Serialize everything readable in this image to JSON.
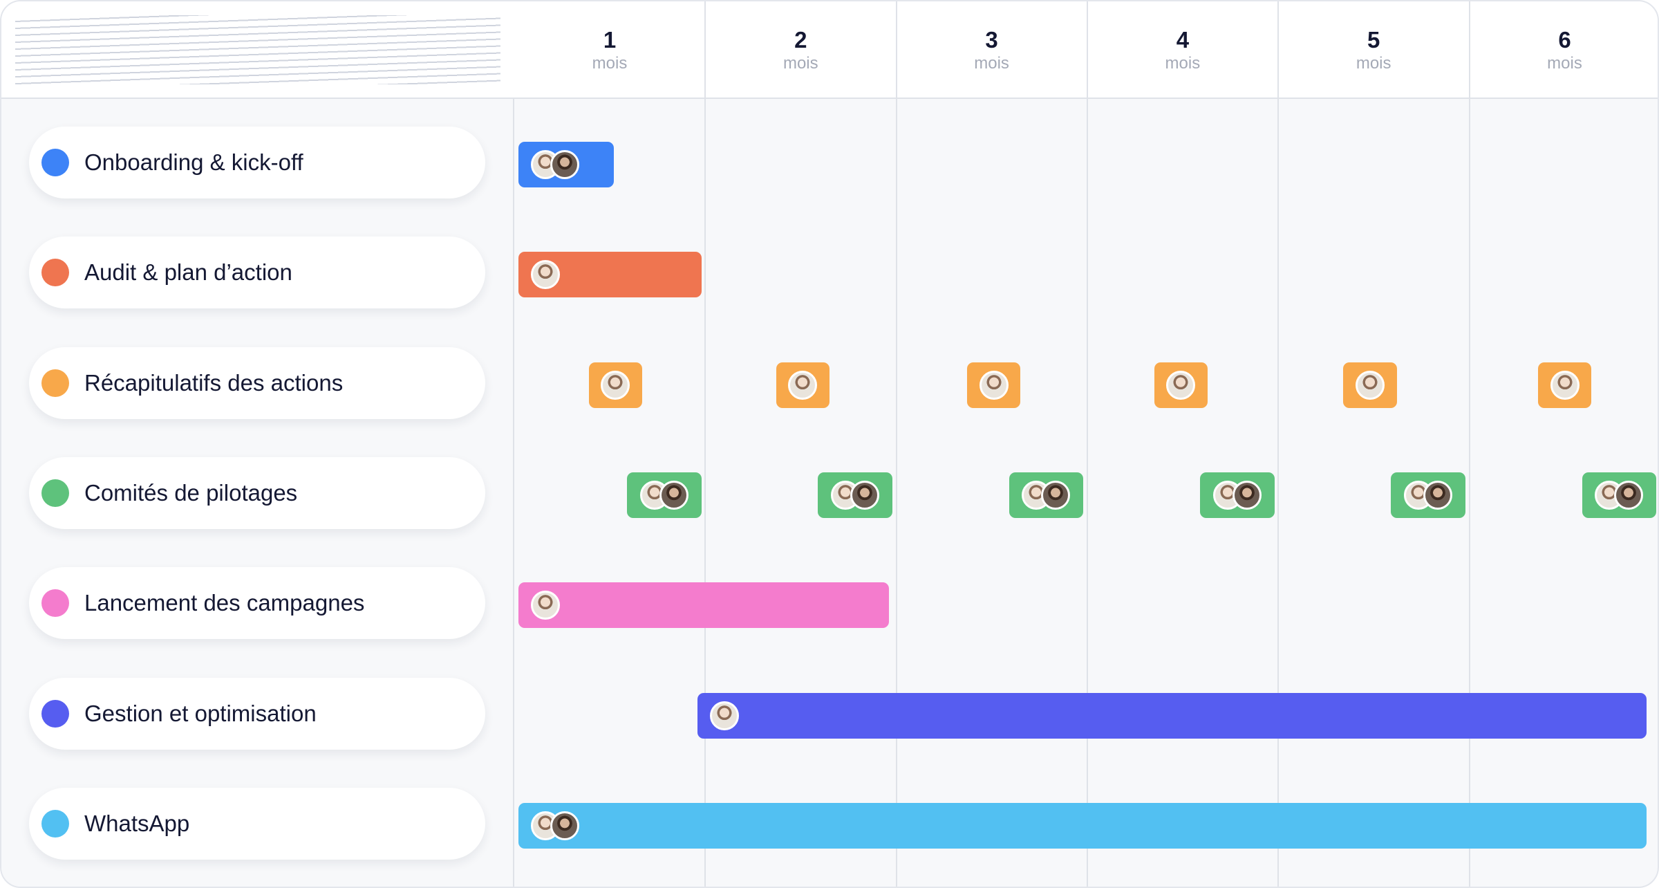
{
  "colors": {
    "blue": "#3d83f7",
    "orange_red": "#ef7550",
    "orange": "#f8a84a",
    "green": "#5ec27c",
    "pink": "#f47ccd",
    "indigo": "#565df0",
    "sky": "#52c0f2"
  },
  "months": [
    {
      "num": "1",
      "unit": "mois"
    },
    {
      "num": "2",
      "unit": "mois"
    },
    {
      "num": "3",
      "unit": "mois"
    },
    {
      "num": "4",
      "unit": "mois"
    },
    {
      "num": "5",
      "unit": "mois"
    },
    {
      "num": "6",
      "unit": "mois"
    }
  ],
  "chart_data": {
    "type": "gantt",
    "x_unit": "mois",
    "x_range": [
      0,
      6
    ],
    "tasks": [
      {
        "name": "Onboarding & kick-off",
        "color": "#3d83f7",
        "bars": [
          {
            "start": 0.02,
            "end": 0.52,
            "avatars": 2
          }
        ]
      },
      {
        "name": "Audit & plan d’action",
        "color": "#ef7550",
        "bars": [
          {
            "start": 0.02,
            "end": 0.98,
            "avatars": 1
          }
        ]
      },
      {
        "name": "Récapitulatifs des actions",
        "color": "#f8a84a",
        "bars": [
          {
            "start": 0.39,
            "end": 0.67,
            "avatars": 1
          },
          {
            "start": 1.37,
            "end": 1.65,
            "avatars": 1
          },
          {
            "start": 2.37,
            "end": 2.65,
            "avatars": 1
          },
          {
            "start": 3.35,
            "end": 3.63,
            "avatars": 1
          },
          {
            "start": 4.34,
            "end": 4.62,
            "avatars": 1
          },
          {
            "start": 5.36,
            "end": 5.64,
            "avatars": 1
          }
        ]
      },
      {
        "name": "Comités de pilotages",
        "color": "#5ec27c",
        "bars": [
          {
            "start": 0.59,
            "end": 0.98,
            "avatars": 2
          },
          {
            "start": 1.59,
            "end": 1.98,
            "avatars": 2
          },
          {
            "start": 2.59,
            "end": 2.98,
            "avatars": 2
          },
          {
            "start": 3.59,
            "end": 3.98,
            "avatars": 2
          },
          {
            "start": 4.59,
            "end": 4.98,
            "avatars": 2
          },
          {
            "start": 5.59,
            "end": 5.98,
            "avatars": 2
          }
        ]
      },
      {
        "name": "Lancement des campagnes",
        "color": "#f47ccd",
        "bars": [
          {
            "start": 0.02,
            "end": 1.96,
            "avatars": 1
          }
        ]
      },
      {
        "name": "Gestion et optimisation",
        "color": "#565df0",
        "bars": [
          {
            "start": 0.96,
            "end": 5.93,
            "avatars": 1
          }
        ]
      },
      {
        "name": "WhatsApp",
        "color": "#52c0f2",
        "bars": [
          {
            "start": 0.02,
            "end": 5.93,
            "avatars": 2
          }
        ]
      }
    ]
  }
}
